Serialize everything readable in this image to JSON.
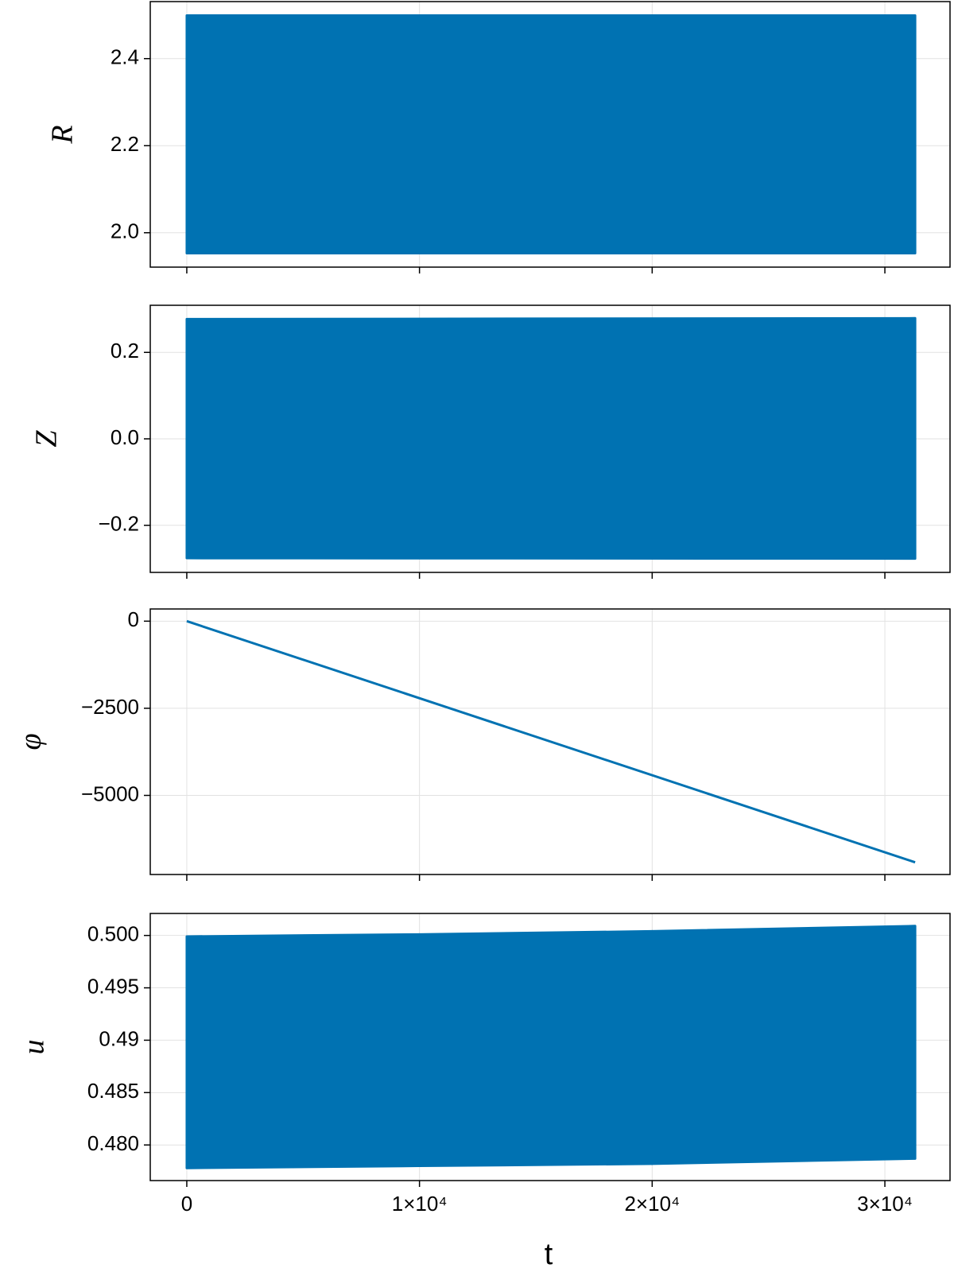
{
  "chart_data": [
    {
      "type": "band",
      "ylabel": "R",
      "color": "#0072b2",
      "grid": true,
      "x": [
        0,
        31300
      ],
      "upper": [
        2.499,
        2.499
      ],
      "lower": [
        1.953,
        1.953
      ],
      "xlim": [
        -1570,
        32800
      ],
      "xticks": [
        0,
        10000,
        20000,
        30000
      ],
      "ylim": [
        1.921,
        2.531
      ],
      "yticks": [
        {
          "value": 2.0,
          "label": "2.0"
        },
        2.2,
        2.4
      ]
    },
    {
      "type": "band",
      "ylabel": "Z",
      "color": "#0072b2",
      "grid": true,
      "x": [
        0,
        31300
      ],
      "upper": [
        0.277,
        0.279
      ],
      "lower": [
        -0.276,
        -0.277
      ],
      "xlim": [
        -1570,
        32800
      ],
      "xticks": [
        0,
        10000,
        20000,
        30000
      ],
      "ylim": [
        -0.309,
        0.309
      ],
      "yticks": [
        {
          "value": -0.2,
          "label": "−0.2"
        },
        {
          "value": 0,
          "label": "0.0"
        },
        0.2
      ]
    },
    {
      "type": "line",
      "ylabel": "φ",
      "color": "#0072b2",
      "grid": true,
      "x": [
        0,
        31300
      ],
      "values": [
        0,
        -6920
      ],
      "xlim": [
        -1570,
        32800
      ],
      "xticks": [
        0,
        10000,
        20000,
        30000
      ],
      "ylim": [
        -7270,
        350
      ],
      "yticks": [
        {
          "value": -5000,
          "label": "−5000"
        },
        {
          "value": -2500,
          "label": "−2500"
        },
        0
      ]
    },
    {
      "type": "band",
      "ylabel": "u",
      "xlabel": "t",
      "color": "#0072b2",
      "grid": true,
      "x": [
        0,
        10000,
        20000,
        31300
      ],
      "upper": [
        0.4999,
        0.5001,
        0.5004,
        0.5009
      ],
      "lower": [
        0.4778,
        0.478,
        0.4782,
        0.4787
      ],
      "xlim": [
        -1570,
        32800
      ],
      "xticks": [
        0,
        {
          "value": 10000,
          "label": "1×10⁴"
        },
        {
          "value": 20000,
          "label": "2×10⁴"
        },
        {
          "value": 30000,
          "label": "3×10⁴"
        }
      ],
      "ylim": [
        0.4766,
        0.5021
      ],
      "yticks": [
        {
          "value": 0.48,
          "label": "0.480"
        },
        0.485,
        0.49,
        0.495,
        {
          "value": 0.5,
          "label": "0.500"
        }
      ]
    }
  ]
}
